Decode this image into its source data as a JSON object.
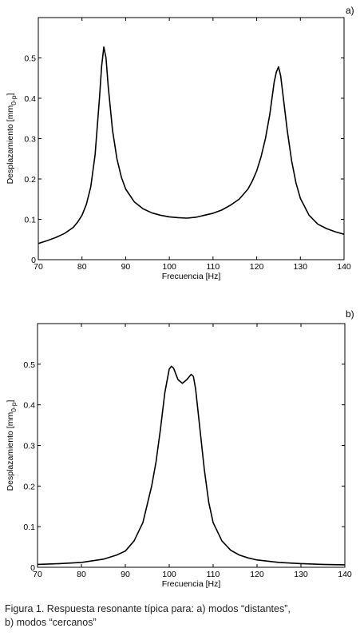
{
  "chart_data": [
    {
      "type": "line",
      "panel_label": "a)",
      "xlabel": "Frecuencia [Hz]",
      "ylabel_main": "Desplazamiento  [mm",
      "ylabel_sub": "0-p",
      "ylabel_end": "]",
      "xlim": [
        70,
        140
      ],
      "ylim": [
        0,
        0.6
      ],
      "xticks": [
        70,
        80,
        90,
        100,
        110,
        120,
        130,
        140
      ],
      "yticks": [
        0,
        0.1,
        0.2,
        0.3,
        0.4,
        0.5
      ],
      "ytick_labels": [
        "0",
        "0.1",
        "0.2",
        "0.3",
        "0.4",
        "0.5"
      ],
      "grid": false,
      "series": [
        {
          "x": [
            70,
            72,
            74,
            76,
            78,
            79,
            80,
            81,
            82,
            83,
            84,
            84.5,
            85,
            85.5,
            86,
            87,
            88,
            89,
            90,
            92,
            94,
            96,
            98,
            100,
            102,
            104,
            106,
            108,
            110,
            112,
            114,
            116,
            118,
            119,
            120,
            121,
            122,
            123,
            124,
            124.5,
            125,
            125.5,
            126,
            127,
            128,
            129,
            130,
            132,
            134,
            136,
            138,
            140
          ],
          "y": [
            0.04,
            0.047,
            0.055,
            0.065,
            0.08,
            0.093,
            0.11,
            0.137,
            0.18,
            0.26,
            0.4,
            0.48,
            0.527,
            0.5,
            0.43,
            0.32,
            0.25,
            0.205,
            0.175,
            0.143,
            0.126,
            0.116,
            0.11,
            0.106,
            0.104,
            0.103,
            0.105,
            0.11,
            0.115,
            0.123,
            0.135,
            0.15,
            0.175,
            0.195,
            0.22,
            0.255,
            0.3,
            0.36,
            0.44,
            0.465,
            0.478,
            0.455,
            0.41,
            0.32,
            0.245,
            0.19,
            0.152,
            0.11,
            0.088,
            0.077,
            0.069,
            0.063
          ]
        }
      ]
    },
    {
      "type": "line",
      "panel_label": "b)",
      "xlabel": "Frecuencia [Hz]",
      "ylabel_main": "Desplazamiento  [mm",
      "ylabel_sub": "0-p",
      "ylabel_end": "]",
      "xlim": [
        70,
        140
      ],
      "ylim": [
        0,
        0.6
      ],
      "xticks": [
        70,
        80,
        90,
        100,
        110,
        120,
        130,
        140
      ],
      "yticks": [
        0,
        0.1,
        0.2,
        0.3,
        0.4,
        0.5
      ],
      "ytick_labels": [
        "0",
        "0.1",
        "0.2",
        "0.3",
        "0.4",
        "0.5"
      ],
      "grid": false,
      "series": [
        {
          "x": [
            70,
            75,
            80,
            85,
            88,
            90,
            92,
            94,
            96,
            97,
            98,
            99,
            100,
            100.5,
            101,
            102,
            103,
            104,
            105,
            105.5,
            106,
            107,
            108,
            109,
            110,
            112,
            114,
            116,
            118,
            120,
            125,
            130,
            135,
            140
          ],
          "y": [
            0.007,
            0.009,
            0.012,
            0.02,
            0.03,
            0.04,
            0.065,
            0.11,
            0.2,
            0.26,
            0.34,
            0.43,
            0.488,
            0.495,
            0.49,
            0.462,
            0.453,
            0.462,
            0.475,
            0.47,
            0.44,
            0.34,
            0.24,
            0.16,
            0.11,
            0.065,
            0.042,
            0.03,
            0.023,
            0.018,
            0.012,
            0.009,
            0.007,
            0.006
          ]
        }
      ]
    }
  ],
  "caption": {
    "line1": "Figura 1. Respuesta resonante típica para: a) modos “distantes”,",
    "line2": "b) modos “cercanos”"
  }
}
